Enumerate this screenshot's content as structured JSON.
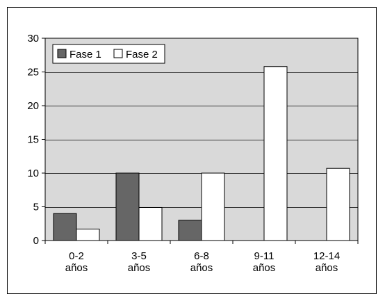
{
  "chart_data": {
    "type": "bar",
    "title": "",
    "xlabel": "",
    "ylabel": "",
    "categories": [
      [
        "0-2",
        "años"
      ],
      [
        "3-5",
        "años"
      ],
      [
        "6-8",
        "años"
      ],
      [
        "9-11",
        "años"
      ],
      [
        "12-14",
        "años"
      ]
    ],
    "series": [
      {
        "name": "Fase 1",
        "color": "#666666",
        "values": [
          4,
          10,
          3,
          0,
          0
        ]
      },
      {
        "name": "Fase 2",
        "color": "#ffffff",
        "values": [
          1.7,
          4.9,
          10,
          25.8,
          10.7
        ]
      }
    ],
    "ylim": [
      0,
      30
    ],
    "yticks": [
      0,
      5,
      10,
      15,
      20,
      25,
      30
    ],
    "grid": true,
    "plot_background": "#d9d9d9",
    "legend_position": "top-left"
  }
}
